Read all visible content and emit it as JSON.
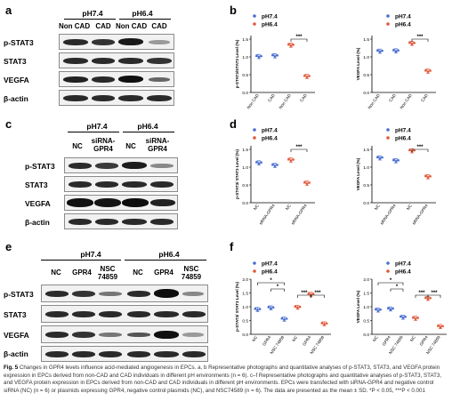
{
  "panels": {
    "a": {
      "letter": "a",
      "groups": [
        "pH7.4",
        "pH6.4"
      ],
      "lanes": [
        "Non CAD",
        "CAD",
        "Non CAD",
        "CAD"
      ],
      "rows": [
        "p-STAT3",
        "STAT3",
        "VEGFA",
        "β-actin"
      ]
    },
    "c": {
      "letter": "c",
      "groups": [
        "pH7.4",
        "pH6.4"
      ],
      "lanes": [
        "NC",
        "siRNA-\nGPR4",
        "NC",
        "siRNA-\nGPR4"
      ],
      "rows": [
        "p-STAT3",
        "STAT3",
        "VEGFA",
        "β-actin"
      ]
    },
    "e": {
      "letter": "e",
      "groups": [
        "pH7.4",
        "pH6.4"
      ],
      "lanes": [
        "NC",
        "GPR4",
        "NSC\n74859",
        "NC",
        "GPR4",
        "NSC\n74859"
      ],
      "rows": [
        "p-STAT3",
        "STAT3",
        "VEGFA",
        "β-actin"
      ]
    },
    "b": {
      "letter": "b"
    },
    "d": {
      "letter": "d"
    },
    "f": {
      "letter": "f"
    }
  },
  "legend": {
    "series1": "pH7.4",
    "series2": "pH6.4",
    "color1": "#4a6fd1",
    "color2": "#e0593a"
  },
  "chart_data": [
    {
      "id": "b-left",
      "type": "scatter",
      "ylabel": "p-STAT3/STAT3 Level (%)",
      "yticks": [
        "0.0",
        "0.5",
        "1.0",
        "1.5"
      ],
      "ylim": [
        0,
        1.6
      ],
      "categories": [
        "Non CAD",
        "CAD",
        "Non CAD",
        "CAD"
      ],
      "series": [
        {
          "name": "pH7.4",
          "values": [
            1.01,
            1.03,
            null,
            null
          ]
        },
        {
          "name": "pH6.4",
          "values": [
            null,
            null,
            1.33,
            0.45
          ]
        }
      ],
      "significance": [
        "***"
      ]
    },
    {
      "id": "b-right",
      "type": "scatter",
      "ylabel": "VEGFA Level (%)",
      "yticks": [
        "0.0",
        "0.5",
        "1.0",
        "1.5"
      ],
      "ylim": [
        0,
        1.6
      ],
      "categories": [
        "Non CAD",
        "CAD",
        "Non CAD",
        "CAD"
      ],
      "series": [
        {
          "name": "pH7.4",
          "values": [
            1.16,
            1.17,
            null,
            null
          ]
        },
        {
          "name": "pH6.4",
          "values": [
            null,
            null,
            1.38,
            0.6
          ]
        }
      ],
      "significance": [
        "***"
      ]
    },
    {
      "id": "d-left",
      "type": "scatter",
      "ylabel": "p-STAT3/ STAT3 Level (%)",
      "yticks": [
        "0.0",
        "0.5",
        "1.0",
        "1.5"
      ],
      "ylim": [
        0,
        1.6
      ],
      "categories": [
        "NC",
        "siRNA-GPR4",
        "NC",
        "siRNA-GPR4"
      ],
      "series": [
        {
          "name": "pH7.4",
          "values": [
            1.12,
            1.05,
            null,
            null
          ]
        },
        {
          "name": "pH6.4",
          "values": [
            null,
            null,
            1.2,
            0.55
          ]
        }
      ],
      "significance": [
        "***"
      ]
    },
    {
      "id": "d-right",
      "type": "scatter",
      "ylabel": "VEGFA Level (%)",
      "yticks": [
        "0.0",
        "0.5",
        "1.0",
        "1.5"
      ],
      "ylim": [
        0,
        1.6
      ],
      "categories": [
        "NC",
        "siRNA-GPR4",
        "NC",
        "siRNA-GPR4"
      ],
      "series": [
        {
          "name": "pH7.4",
          "values": [
            1.26,
            1.18,
            null,
            null
          ]
        },
        {
          "name": "pH6.4",
          "values": [
            null,
            null,
            1.46,
            0.73
          ]
        }
      ],
      "significance": [
        "***"
      ]
    },
    {
      "id": "f-left",
      "type": "scatter",
      "ylabel": "p-STAT3/ STAT3 Level (%)",
      "yticks": [
        "0.0",
        "0.5",
        "1.0",
        "1.5",
        "2.0"
      ],
      "ylim": [
        0,
        2.0
      ],
      "categories": [
        "NC",
        "GPR4",
        "NSC 74859",
        "NC",
        "GPR4",
        "NSC 74859"
      ],
      "series": [
        {
          "name": "pH7.4",
          "values": [
            0.9,
            0.96,
            0.55,
            null,
            null,
            null
          ]
        },
        {
          "name": "pH6.4",
          "values": [
            null,
            null,
            null,
            0.98,
            1.45,
            0.38
          ]
        }
      ],
      "significance": [
        "*",
        "*",
        "***",
        "***"
      ]
    },
    {
      "id": "f-right",
      "type": "scatter",
      "ylabel": "VEGFA Level (%)",
      "yticks": [
        "0.0",
        "0.5",
        "1.0",
        "1.5",
        "2.0"
      ],
      "ylim": [
        0,
        2.0
      ],
      "categories": [
        "NC",
        "GPR4",
        "NSC 74859",
        "NC",
        "GPR4",
        "NSC 74859"
      ],
      "series": [
        {
          "name": "pH7.4",
          "values": [
            0.88,
            0.92,
            0.62,
            null,
            null,
            null
          ]
        },
        {
          "name": "pH6.4",
          "values": [
            null,
            null,
            null,
            0.58,
            1.3,
            0.28
          ]
        }
      ],
      "significance": [
        "*",
        "*",
        "***",
        "***"
      ]
    }
  ],
  "caption": {
    "bold": "Fig. 5",
    "text": " Changes in GPR4 levels influence acid-mediated angiogenesis in EPCs. a, b Representative photographs and quantitative analyses of p-STAT3, STAT3, and VEGFA protein expression in EPCs derived from non-CAD and CAD individuals in different pH environments (n = 6). c–f Representative photographs and quantitative analyses of p-STAT3, STAT3, and VEGFA protein expression in EPCs derived from non-CAD and CAD individuals in different pH environments. EPCs were transfected with siRNA-GPR4 and negative control siRNA (NC) (n = 6) or plasmids expressing GPR4, negative control plasmids (NC), and NSC74589 (n = 6). The data are presented as the mean ± SD. *P < 0.05, ***P < 0.001"
  }
}
